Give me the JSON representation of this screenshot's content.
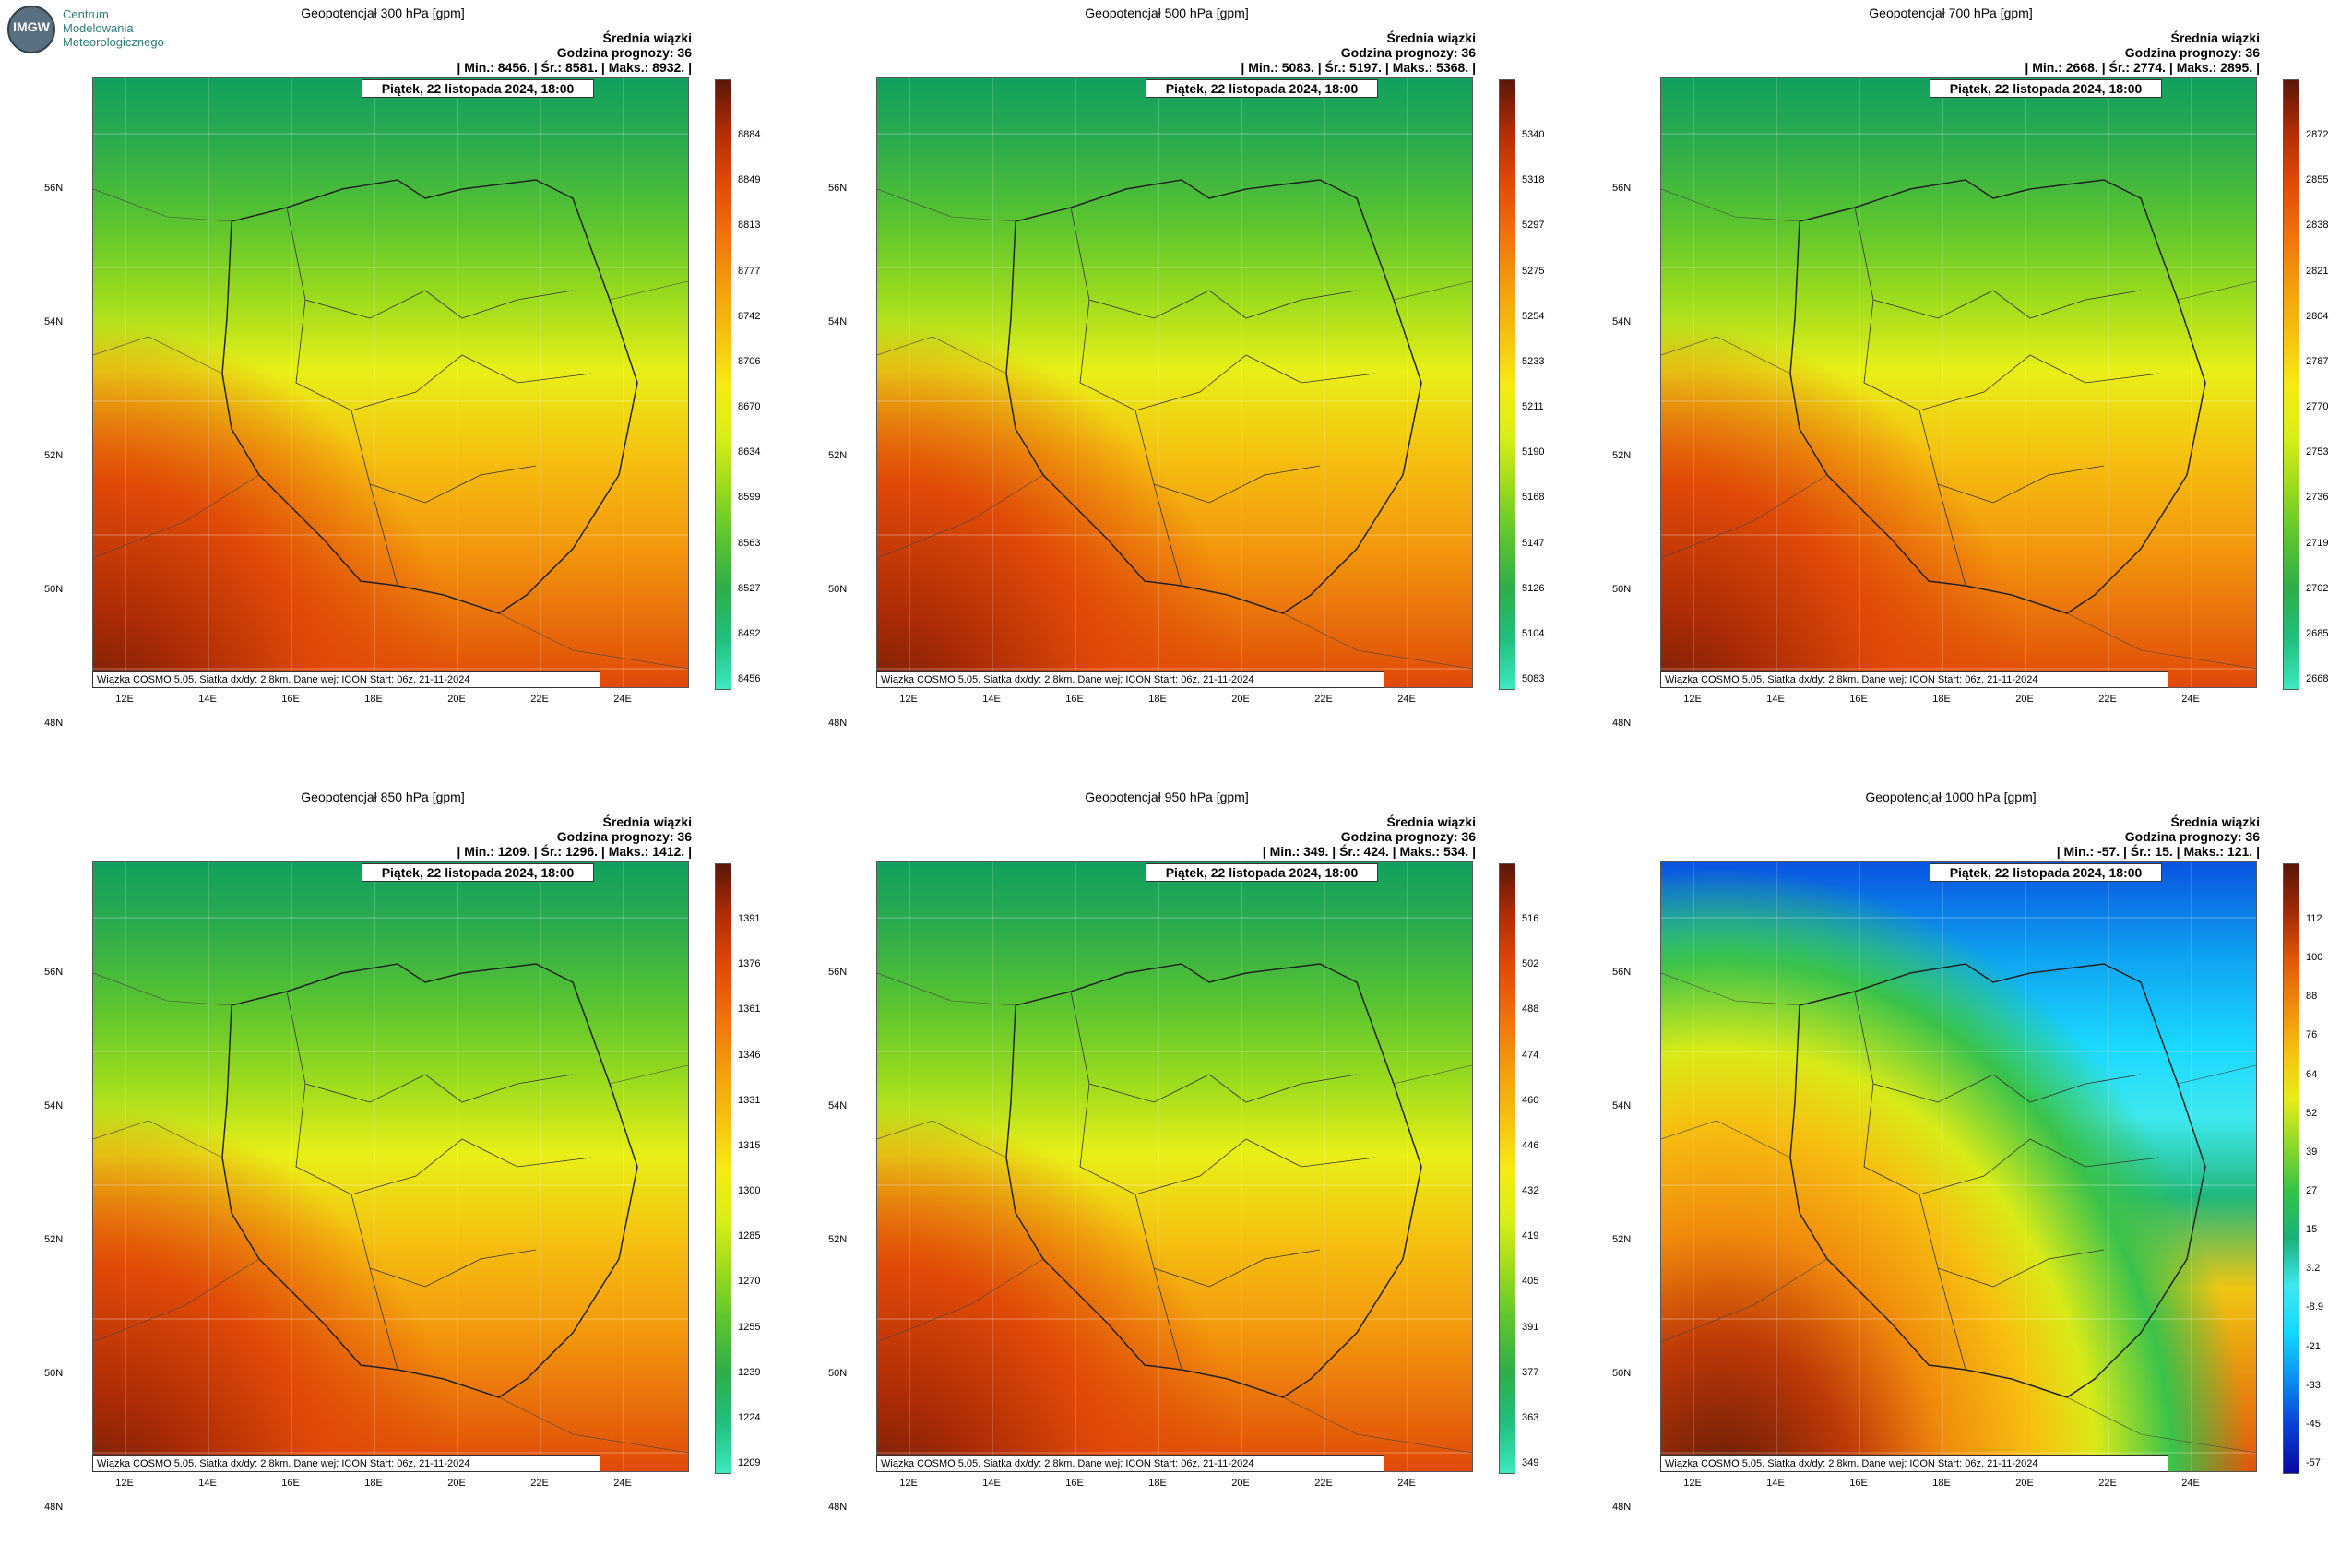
{
  "logo": {
    "line1": "Centrum",
    "line2": "Modelowania",
    "line3": "Meteorologicznego",
    "abbr": "IMGW"
  },
  "common": {
    "title_right": "Średnia wiązki",
    "forecast_hour": "Godzina prognozy: 36",
    "date": "Piątek, 22 listopada 2024, 18:00",
    "footer": "Wiązka COSMO 5.05. Siatka dx/dy: 2.8km. Dane wej: ICON Start: 06z, 21-11-2024",
    "lat_labels": [
      "56N",
      "54N",
      "52N",
      "50N",
      "48N"
    ],
    "lon_labels": [
      "12E",
      "14E",
      "16E",
      "18E",
      "20E",
      "22E",
      "24E"
    ]
  },
  "panels": [
    {
      "title": "Geopotencjał 300 hPa [gpm]",
      "stats": "| Min.:   8456. | Śr.:   8581. | Maks.:   8932. |",
      "ticks": [
        "8884",
        "8849",
        "8813",
        "8777",
        "8742",
        "8706",
        "8670",
        "8634",
        "8599",
        "8563",
        "8527",
        "8492",
        "8456"
      ],
      "palette": "warm"
    },
    {
      "title": "Geopotencjał 500 hPa [gpm]",
      "stats": "| Min.:   5083. | Śr.:   5197. | Maks.:   5368. |",
      "ticks": [
        "5340",
        "5318",
        "5297",
        "5275",
        "5254",
        "5233",
        "5211",
        "5190",
        "5168",
        "5147",
        "5126",
        "5104",
        "5083"
      ],
      "palette": "warm"
    },
    {
      "title": "Geopotencjał 700 hPa [gpm]",
      "stats": "| Min.:   2668. | Śr.:   2774. | Maks.:   2895. |",
      "ticks": [
        "2872",
        "2855",
        "2838",
        "2821",
        "2804",
        "2787",
        "2770",
        "2753",
        "2736",
        "2719",
        "2702",
        "2685",
        "2668"
      ],
      "palette": "warm"
    },
    {
      "title": "Geopotencjał 850 hPa [gpm]",
      "stats": "| Min.:   1209. | Śr.:   1296. | Maks.:   1412. |",
      "ticks": [
        "1391",
        "1376",
        "1361",
        "1346",
        "1331",
        "1315",
        "1300",
        "1285",
        "1270",
        "1255",
        "1239",
        "1224",
        "1209"
      ],
      "palette": "warm"
    },
    {
      "title": "Geopotencjał 950 hPa [gpm]",
      "stats": "| Min.:   349. | Śr.:   424. | Maks.:   534. |",
      "ticks": [
        "516",
        "502",
        "488",
        "474",
        "460",
        "446",
        "432",
        "419",
        "405",
        "391",
        "377",
        "363",
        "349"
      ],
      "palette": "warm"
    },
    {
      "title": "Geopotencjał 1000 hPa [gpm]",
      "stats": "| Min.:   -57. | Śr.:   15. | Maks.:   121. |",
      "ticks": [
        "112",
        "100",
        "88",
        "76",
        "64",
        "52",
        "39",
        "27",
        "15",
        "3.2",
        "-8.9",
        "-21",
        "-33",
        "-45",
        "-57"
      ],
      "palette": "cold"
    }
  ]
}
